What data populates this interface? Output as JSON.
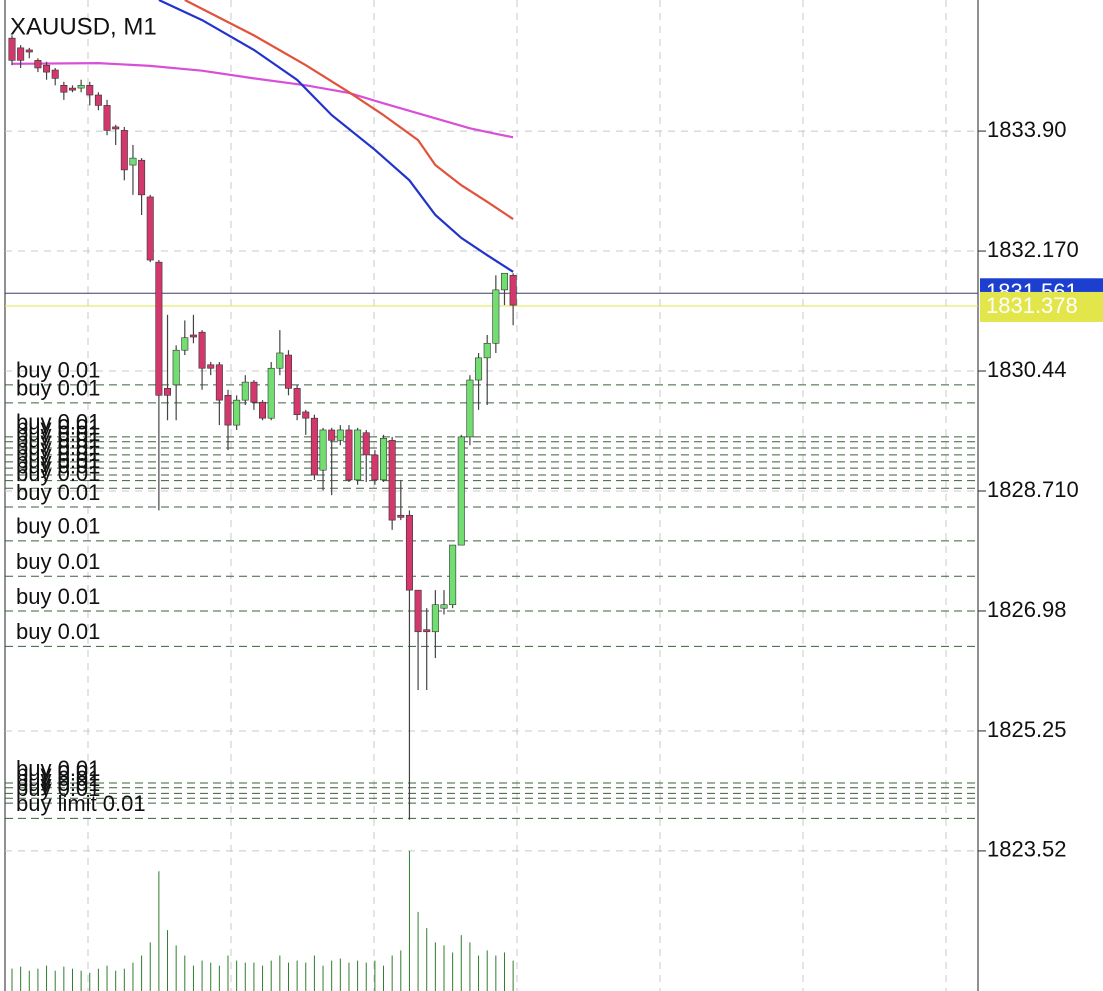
{
  "chart_data": {
    "type": "candlestick",
    "title": "XAUUSD, M1",
    "ylim": [
      1821.5,
      1835.79
    ],
    "yticks": [
      {
        "value": 1833.9,
        "label": "1833.90"
      },
      {
        "value": 1832.17,
        "label": "1832.170"
      },
      1830.44,
      {
        "value": 1828.71,
        "label": "1828.710"
      },
      1826.98,
      1825.25,
      1823.52
    ],
    "grid": true,
    "up_color": "#72de72",
    "down_color": "#d2386c",
    "open": [
      1835.24,
      1835.1,
      1835.07,
      1834.92,
      1834.85,
      1834.78,
      1834.56,
      1834.52,
      1834.52,
      1834.56,
      1834.42,
      1834.27,
      1833.96,
      1833.91,
      1833.41,
      1833.48,
      1832.95,
      1832.01,
      1830.19,
      1830.24,
      1830.74,
      1830.96,
      1831.0,
      1830.53,
      1830.53,
      1830.09,
      1829.66,
      1830.02,
      1830.28,
      1829.99,
      1829.76,
      1830.48,
      1830.67,
      1830.19,
      1829.85,
      1829.76,
      1829.01,
      1829.59,
      1829.44,
      1829.59,
      1828.87,
      1829.55,
      1829.23,
      1828.87,
      1829.44,
      1828.36,
      1828.36,
      1827.28,
      1826.71,
      1826.68,
      1827.02,
      1827.07,
      1827.93,
      1829.49,
      1830.31,
      1830.63,
      1830.84,
      1831.61,
      1831.82
    ],
    "high": [
      1835.28,
      1835.14,
      1835.1,
      1834.95,
      1834.9,
      1834.81,
      1834.61,
      1834.56,
      1834.64,
      1834.61,
      1834.46,
      1834.35,
      1833.99,
      1833.96,
      1833.7,
      1833.51,
      1832.98,
      1832.04,
      1831.25,
      1830.81,
      1831.17,
      1831.25,
      1831.03,
      1830.57,
      1830.57,
      1830.17,
      1830.09,
      1830.38,
      1830.31,
      1830.02,
      1830.57,
      1831.03,
      1830.74,
      1830.24,
      1829.88,
      1829.81,
      1829.62,
      1829.62,
      1829.66,
      1829.66,
      1829.62,
      1829.59,
      1829.3,
      1829.52,
      1829.49,
      1828.87,
      1828.43,
      1827.28,
      1827.02,
      1827.28,
      1827.28,
      1827.93,
      1829.52,
      1830.38,
      1830.7,
      1830.96,
      1831.82,
      1831.85,
      1831.85
    ],
    "low": [
      1834.85,
      1834.81,
      1834.95,
      1834.75,
      1834.64,
      1834.56,
      1834.35,
      1834.46,
      1834.46,
      1834.27,
      1834.2,
      1833.84,
      1833.7,
      1833.19,
      1832.98,
      1832.69,
      1832.01,
      1828.43,
      1829.73,
      1829.73,
      1830.67,
      1830.84,
      1830.17,
      1830.38,
      1829.66,
      1829.3,
      1829.59,
      1829.95,
      1829.88,
      1829.73,
      1829.73,
      1830.38,
      1830.09,
      1829.73,
      1829.52,
      1828.87,
      1828.72,
      1828.65,
      1829.37,
      1828.84,
      1828.8,
      1828.84,
      1828.8,
      1828.84,
      1828.15,
      1828.29,
      1823.97,
      1825.84,
      1825.84,
      1826.3,
      1826.93,
      1827.02,
      1827.93,
      1829.37,
      1829.88,
      1829.95,
      1830.7,
      1831.39,
      1831.1
    ],
    "close": [
      1834.92,
      1834.92,
      1835.04,
      1834.81,
      1834.75,
      1834.66,
      1834.46,
      1834.49,
      1834.56,
      1834.42,
      1834.27,
      1833.91,
      1833.93,
      1833.34,
      1833.51,
      1832.98,
      1832.04,
      1830.09,
      1830.09,
      1830.74,
      1830.92,
      1830.93,
      1830.48,
      1830.48,
      1830.02,
      1829.66,
      1830.02,
      1830.28,
      1829.99,
      1829.76,
      1830.48,
      1830.7,
      1830.19,
      1829.81,
      1829.76,
      1828.94,
      1829.59,
      1829.44,
      1829.59,
      1828.87,
      1829.59,
      1829.23,
      1828.87,
      1829.47,
      1828.29,
      1828.33,
      1827.28,
      1826.68,
      1826.68,
      1827.07,
      1827.07,
      1827.93,
      1829.49,
      1830.31,
      1830.63,
      1830.84,
      1831.61,
      1831.85,
      1831.39
    ],
    "volume": [
      22,
      24,
      20,
      22,
      25,
      20,
      24,
      22,
      20,
      18,
      22,
      25,
      20,
      22,
      28,
      35,
      48,
      118,
      60,
      45,
      35,
      25,
      30,
      28,
      25,
      35,
      30,
      28,
      28,
      25,
      30,
      35,
      28,
      30,
      28,
      35,
      25,
      30,
      32,
      28,
      30,
      28,
      30,
      25,
      35,
      40,
      138,
      78,
      62,
      48,
      45,
      38,
      55,
      48,
      35,
      40,
      35,
      38,
      30
    ],
    "volume_color": "#2f7d2f",
    "moving_averages": [
      {
        "color": "#d84fd8",
        "x": [
          0,
          10,
          16,
          22,
          28,
          34,
          39,
          43,
          48,
          53,
          56,
          58
        ],
        "values": [
          1834.87,
          1834.88,
          1834.84,
          1834.77,
          1834.66,
          1834.56,
          1834.45,
          1834.3,
          1834.12,
          1833.94,
          1833.86,
          1833.81
        ]
      },
      {
        "color": "#e0533a",
        "x": [
          20,
          28,
          34,
          39,
          43,
          47,
          49,
          52,
          55,
          58
        ],
        "values": [
          1835.79,
          1835.28,
          1834.85,
          1834.46,
          1834.13,
          1833.77,
          1833.41,
          1833.12,
          1832.88,
          1832.63
        ]
      },
      {
        "color": "#2233cc",
        "x": [
          17,
          22,
          28,
          33,
          37,
          42,
          46,
          49,
          52,
          55,
          58
        ],
        "values": [
          1835.79,
          1835.5,
          1835.07,
          1834.64,
          1834.13,
          1833.63,
          1833.19,
          1832.69,
          1832.36,
          1832.11,
          1831.87
        ]
      }
    ],
    "bid": 1831.561,
    "bid_color": "#1d3fd0",
    "ask": 1831.378,
    "ask_color": "#e2e64a",
    "orders": [
      {
        "label": "buy 0.01",
        "price": 1830.24
      },
      {
        "label": "buy 0.01",
        "price": 1829.98
      },
      {
        "label": "buy 0.01",
        "price": 1829.49
      },
      {
        "label": "buy 0.01",
        "price": 1829.42
      },
      {
        "label": "buy 0.01",
        "price": 1829.33
      },
      {
        "label": "buy 0.01",
        "price": 1829.23
      },
      {
        "label": "buy 0.01",
        "price": 1829.13
      },
      {
        "label": "buy 0.01",
        "price": 1829.04
      },
      {
        "label": "buy 0.01",
        "price": 1828.94
      },
      {
        "label": "buy 0.01",
        "price": 1828.86
      },
      {
        "label": "buy 0.01",
        "price": 1828.75
      },
      {
        "label": "buy 0.01",
        "price": 1828.48
      },
      {
        "label": "buy 0.01",
        "price": 1827.99
      },
      {
        "label": "buy 0.01",
        "price": 1827.48
      },
      {
        "label": "buy 0.01",
        "price": 1826.98
      },
      {
        "label": "buy 0.01",
        "price": 1826.47
      },
      {
        "label": "buy 0.01",
        "price": 1824.5
      },
      {
        "label": "buy 0.01",
        "price": 1824.43
      },
      {
        "label": "buy 0.01",
        "price": 1824.35
      },
      {
        "label": "buy 0.01",
        "price": 1824.28
      },
      {
        "label": "buy 0.01",
        "price": 1824.21
      },
      {
        "label": "buy limit 0.01",
        "price": 1823.99
      }
    ]
  }
}
